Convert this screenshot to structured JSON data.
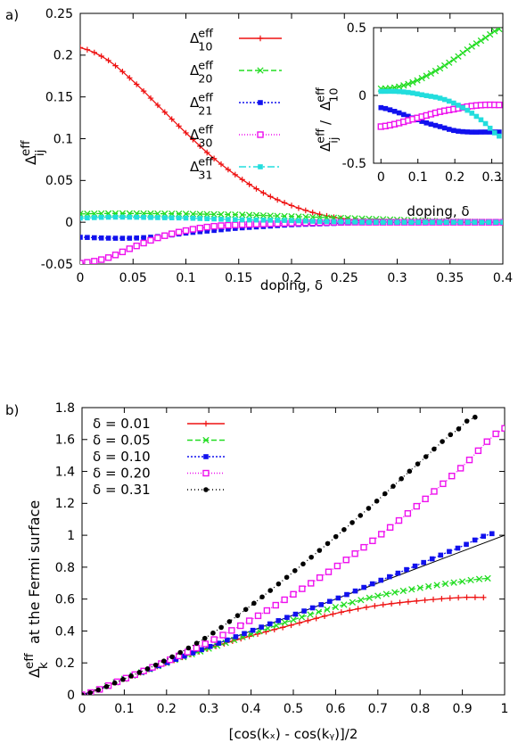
{
  "chart_data": [
    {
      "type": "line",
      "panel_label": "a)",
      "xlabel_text": "doping, ",
      "xlabel_symbol": "δ",
      "ylabel": {
        "base": "Δ",
        "sup": "eff",
        "sub": "ij"
      },
      "xlim": [
        0,
        0.4
      ],
      "ylim": [
        -0.05,
        0.25
      ],
      "xticks": [
        "0",
        "0.05",
        "0.1",
        "0.15",
        "0.2",
        "0.25",
        "0.3",
        "0.35",
        "0.4"
      ],
      "yticks": [
        "-0.05",
        "0",
        "0.05",
        "0.1",
        "0.15",
        "0.2",
        "0.25"
      ],
      "grid": false,
      "legend_position": "top-center",
      "x": [
        0,
        0.025,
        0.05,
        0.075,
        0.1,
        0.125,
        0.15,
        0.175,
        0.2,
        0.225,
        0.25,
        0.275,
        0.3,
        0.325,
        0.35,
        0.375,
        0.4
      ],
      "series": [
        {
          "label": {
            "base": "Δ",
            "sup": "eff",
            "sub": "10"
          },
          "color": "#ee1111",
          "marker": "plus",
          "dash": "",
          "values": [
            0.209,
            0.195,
            0.169,
            0.138,
            0.107,
            0.078,
            0.054,
            0.034,
            0.02,
            0.01,
            0.004,
            0.001,
            0.0,
            0.0,
            0.0,
            0.0,
            0.0
          ]
        },
        {
          "label": {
            "base": "Δ",
            "sup": "eff",
            "sub": "20"
          },
          "color": "#22dd22",
          "marker": "x",
          "dash": "6,3",
          "values": [
            0.01,
            0.0105,
            0.0105,
            0.0103,
            0.01,
            0.0095,
            0.009,
            0.008,
            0.007,
            0.006,
            0.005,
            0.004,
            0.003,
            0.002,
            0.001,
            0.0005,
            0.0
          ]
        },
        {
          "label": {
            "base": "Δ",
            "sup": "eff",
            "sub": "21"
          },
          "color": "#1111ee",
          "marker": "square",
          "dash": "2,2",
          "values": [
            -0.018,
            -0.019,
            -0.019,
            -0.017,
            -0.013,
            -0.01,
            -0.007,
            -0.005,
            -0.003,
            -0.002,
            -0.001,
            0.0,
            0.0,
            0.0,
            0.0,
            0.0,
            0.0
          ]
        },
        {
          "label": {
            "base": "Δ",
            "sup": "eff",
            "sub": "30"
          },
          "color": "#ee11ee",
          "marker": "square-open",
          "dash": "1,2",
          "values": [
            -0.049,
            -0.043,
            -0.03,
            -0.018,
            -0.01,
            -0.005,
            -0.003,
            -0.002,
            -0.001,
            -0.0005,
            0.0,
            0.0,
            0.0,
            0.0,
            0.0,
            0.0,
            0.0
          ]
        },
        {
          "label": {
            "base": "Δ",
            "sup": "eff",
            "sub": "31"
          },
          "color": "#22dddd",
          "marker": "square",
          "dash": "8,3,2,3",
          "values": [
            0.005,
            0.006,
            0.006,
            0.0055,
            0.005,
            0.004,
            0.003,
            0.0025,
            0.002,
            0.001,
            0.0005,
            0.0,
            0.0,
            0.0,
            0.0,
            0.0,
            0.0
          ]
        }
      ],
      "inset": {
        "xlabel_text": "doping, ",
        "xlabel_symbol": "δ",
        "ylabel": {
          "base": "Δ",
          "sup": "eff",
          "sub": "ij",
          "mid": " / ",
          "base2": "Δ",
          "sup2": "eff",
          "sub2": "10"
        },
        "xlim": [
          -0.02,
          0.33
        ],
        "ylim": [
          -0.5,
          0.5
        ],
        "xticks": [
          "0",
          "0.1",
          "0.2",
          "0.3"
        ],
        "yticks": [
          "-0.5",
          "0",
          "0.5"
        ],
        "x": [
          0,
          0.04,
          0.08,
          0.12,
          0.16,
          0.2,
          0.24,
          0.28,
          0.32
        ],
        "series": [
          {
            "ref": "20",
            "color": "#22dd22",
            "marker": "x",
            "values": [
              0.05,
              0.06,
              0.09,
              0.14,
              0.2,
              0.27,
              0.35,
              0.42,
              0.49
            ]
          },
          {
            "ref": "21",
            "color": "#1111ee",
            "marker": "square",
            "values": [
              -0.09,
              -0.12,
              -0.16,
              -0.2,
              -0.23,
              -0.26,
              -0.27,
              -0.27,
              -0.27
            ]
          },
          {
            "ref": "30",
            "color": "#ee11ee",
            "marker": "square-open",
            "values": [
              -0.23,
              -0.21,
              -0.18,
              -0.15,
              -0.12,
              -0.1,
              -0.08,
              -0.07,
              -0.07
            ]
          },
          {
            "ref": "31",
            "color": "#22dddd",
            "marker": "square",
            "values": [
              0.03,
              0.03,
              0.02,
              0.0,
              -0.02,
              -0.06,
              -0.12,
              -0.2,
              -0.3
            ]
          }
        ]
      }
    },
    {
      "type": "line",
      "panel_label": "b)",
      "xlabel": "[cos(kₓ) - cos(kᵧ)]/2",
      "ylabel": {
        "base": "Δ",
        "sup": "eff",
        "sub": "k",
        "rest": " at the Fermi surface"
      },
      "xlim": [
        0,
        1
      ],
      "ylim": [
        0,
        1.8
      ],
      "xticks": [
        "0",
        "0.1",
        "0.2",
        "0.3",
        "0.4",
        "0.5",
        "0.6",
        "0.7",
        "0.8",
        "0.9",
        "1"
      ],
      "yticks": [
        "0",
        "0.2",
        "0.4",
        "0.6",
        "0.8",
        "1",
        "1.2",
        "1.4",
        "1.6",
        "1.8"
      ],
      "grid": false,
      "legend_position": "top-left",
      "reference_line": {
        "x": [
          0,
          1
        ],
        "y": [
          0,
          1
        ],
        "color": "#000000"
      },
      "series": [
        {
          "label": "δ = 0.01",
          "color": "#ee1111",
          "marker": "plus",
          "dash": "",
          "x": [
            0,
            0.1,
            0.2,
            0.3,
            0.4,
            0.5,
            0.6,
            0.7,
            0.8,
            0.9,
            0.95
          ],
          "values": [
            0,
            0.1,
            0.2,
            0.29,
            0.37,
            0.44,
            0.51,
            0.56,
            0.59,
            0.61,
            0.61
          ]
        },
        {
          "label": "δ = 0.05",
          "color": "#22dd22",
          "marker": "x",
          "dash": "6,3",
          "x": [
            0,
            0.1,
            0.2,
            0.3,
            0.4,
            0.5,
            0.6,
            0.7,
            0.8,
            0.9,
            0.96
          ],
          "values": [
            0,
            0.1,
            0.2,
            0.29,
            0.38,
            0.47,
            0.55,
            0.62,
            0.67,
            0.71,
            0.73
          ]
        },
        {
          "label": "δ = 0.10",
          "color": "#1111ee",
          "marker": "square",
          "dash": "2,2",
          "x": [
            0,
            0.1,
            0.2,
            0.3,
            0.4,
            0.5,
            0.6,
            0.7,
            0.8,
            0.9,
            0.97
          ],
          "values": [
            0,
            0.1,
            0.2,
            0.3,
            0.4,
            0.5,
            0.6,
            0.71,
            0.82,
            0.93,
            1.01
          ]
        },
        {
          "label": "δ = 0.20",
          "color": "#ee11ee",
          "marker": "square-open",
          "dash": "1,2",
          "x": [
            0,
            0.1,
            0.2,
            0.3,
            0.4,
            0.5,
            0.6,
            0.7,
            0.8,
            0.9,
            1.0
          ],
          "values": [
            0,
            0.1,
            0.21,
            0.33,
            0.47,
            0.63,
            0.8,
            0.99,
            1.2,
            1.43,
            1.67
          ]
        },
        {
          "label": "δ = 0.31",
          "color": "#000000",
          "marker": "dot",
          "dash": "1,3",
          "x": [
            0,
            0.1,
            0.2,
            0.3,
            0.4,
            0.5,
            0.6,
            0.7,
            0.8,
            0.9,
            0.93
          ],
          "values": [
            0,
            0.1,
            0.22,
            0.37,
            0.56,
            0.77,
            0.99,
            1.22,
            1.46,
            1.68,
            1.74
          ]
        }
      ]
    }
  ]
}
